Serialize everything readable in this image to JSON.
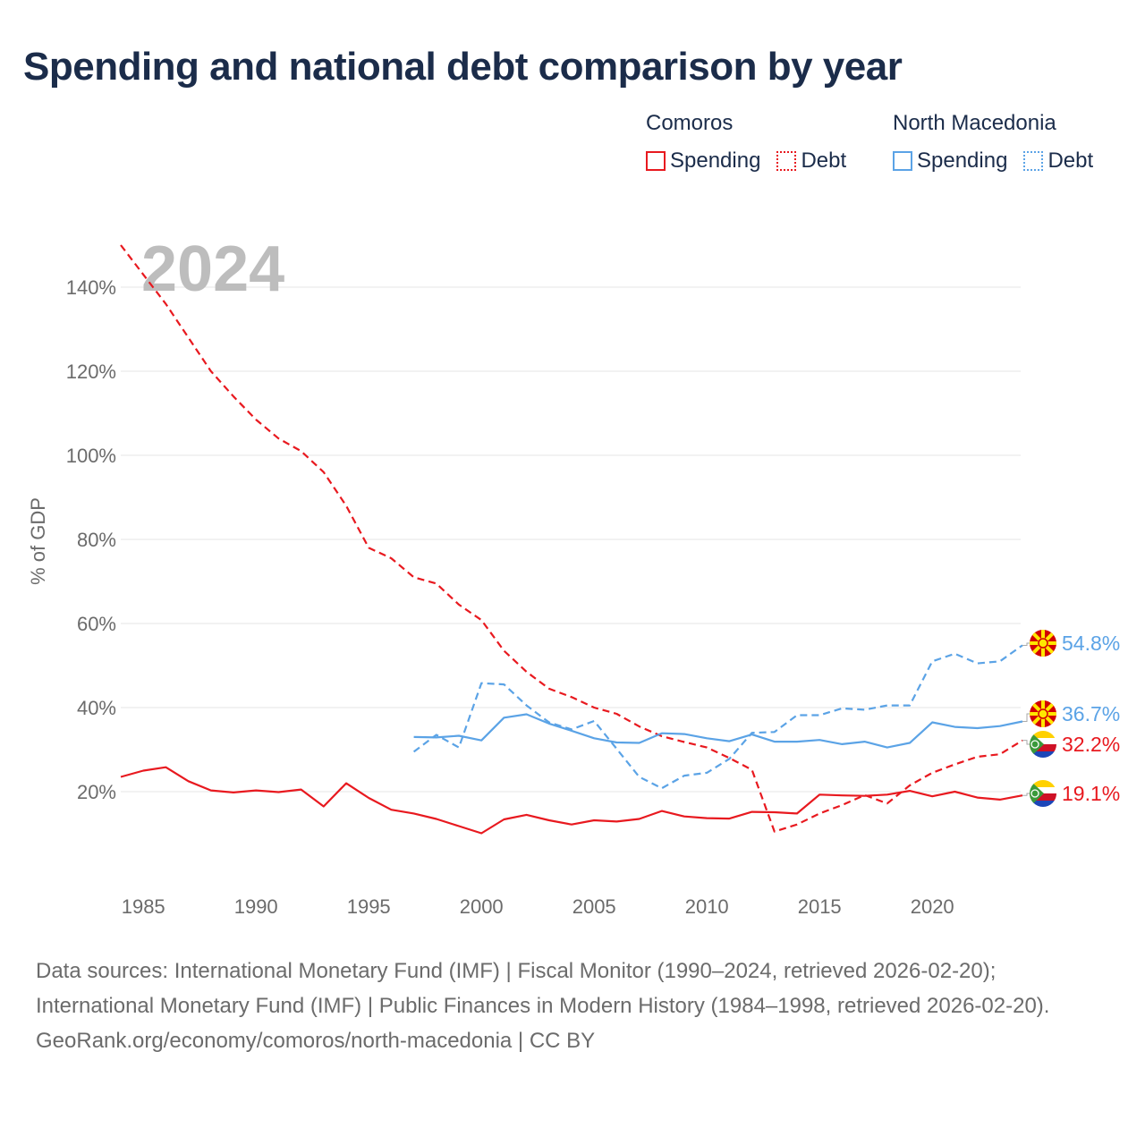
{
  "title": "Spending and national debt comparison by year",
  "legend": {
    "groups": [
      {
        "name": "Comoros",
        "color": "#e8191f",
        "items": [
          {
            "label": "Spending",
            "style": "solid"
          },
          {
            "label": "Debt",
            "style": "dotted"
          }
        ]
      },
      {
        "name": "North Macedonia",
        "color": "#5ba3e6",
        "items": [
          {
            "label": "Spending",
            "style": "solid"
          },
          {
            "label": "Debt",
            "style": "dotted"
          }
        ]
      }
    ]
  },
  "year_label": "2024",
  "sources": {
    "line1": "Data sources: International Monetary Fund (IMF) | Fiscal Monitor (1990–2024, retrieved 2026-02-20); International Monetary Fund (IMF) | Public Finances in Modern History (1984–1998, retrieved 2026-02-20).",
    "line2": "GeoRank.org/economy/comoros/north-macedonia | CC BY"
  },
  "chart_data": {
    "type": "line",
    "ylabel": "% of GDP",
    "xlabel": "",
    "xlim": [
      1984,
      2024
    ],
    "ylim": [
      0,
      150
    ],
    "x_ticks": [
      1985,
      1990,
      1995,
      2000,
      2005,
      2010,
      2015,
      2020
    ],
    "y_ticks": [
      20,
      40,
      60,
      80,
      100,
      120,
      140
    ],
    "y_tick_labels": [
      "20%",
      "40%",
      "60%",
      "80%",
      "100%",
      "120%",
      "140%"
    ],
    "grid": true,
    "series": [
      {
        "name": "Comoros Debt",
        "country": "Comoros",
        "color": "#e8191f",
        "dash": "dashed",
        "end_label": "32.2%",
        "x": [
          1984,
          1985,
          1986,
          1987,
          1988,
          1989,
          1990,
          1991,
          1992,
          1993,
          1994,
          1995,
          1996,
          1997,
          1998,
          1999,
          2000,
          2001,
          2002,
          2003,
          2004,
          2005,
          2006,
          2007,
          2008,
          2009,
          2010,
          2011,
          2012,
          2013,
          2014,
          2015,
          2016,
          2017,
          2018,
          2019,
          2020,
          2021,
          2022,
          2023,
          2024
        ],
        "values": [
          150,
          143,
          136,
          128,
          120,
          114,
          108.5,
          104,
          101,
          96,
          88,
          78,
          75.5,
          71,
          69.5,
          64.5,
          60.8,
          53.5,
          48.5,
          44.5,
          42.5,
          40,
          38.5,
          35.5,
          33.2,
          31.8,
          30.5,
          28,
          25.2,
          10.5,
          12.2,
          14.8,
          16.8,
          19.2,
          17.2,
          21.5,
          24.5,
          26.5,
          28.3,
          28.9,
          32.2
        ]
      },
      {
        "name": "Comoros Spending",
        "country": "Comoros",
        "color": "#e8191f",
        "dash": "solid",
        "end_label": "19.1%",
        "x": [
          1984,
          1985,
          1986,
          1987,
          1988,
          1989,
          1990,
          1991,
          1992,
          1993,
          1994,
          1995,
          1996,
          1997,
          1998,
          1999,
          2000,
          2001,
          2002,
          2003,
          2004,
          2005,
          2006,
          2007,
          2008,
          2009,
          2010,
          2011,
          2012,
          2013,
          2014,
          2015,
          2016,
          2017,
          2018,
          2019,
          2020,
          2021,
          2022,
          2023,
          2024
        ],
        "values": [
          23.5,
          25,
          25.8,
          22.5,
          20.3,
          19.8,
          20.3,
          19.9,
          20.5,
          16.5,
          22,
          18.5,
          15.7,
          14.8,
          13.5,
          11.8,
          10.1,
          13.4,
          14.5,
          13.2,
          12.2,
          13.2,
          12.9,
          13.5,
          15.4,
          14.1,
          13.7,
          13.6,
          15.2,
          15.1,
          14.8,
          19.3,
          19.1,
          19.0,
          19.3,
          20.2,
          18.9,
          20.0,
          18.6,
          18.1,
          19.1
        ]
      },
      {
        "name": "North Macedonia Debt",
        "country": "North Macedonia",
        "color": "#5ba3e6",
        "dash": "dashed",
        "end_label": "54.8%",
        "x": [
          1997,
          1998,
          1999,
          2000,
          2001,
          2002,
          2003,
          2004,
          2005,
          2006,
          2007,
          2008,
          2009,
          2010,
          2011,
          2012,
          2013,
          2014,
          2015,
          2016,
          2017,
          2018,
          2019,
          2020,
          2021,
          2022,
          2023,
          2024
        ],
        "values": [
          29.5,
          33.5,
          30.5,
          45.8,
          45.5,
          40.5,
          36.5,
          34.8,
          36.8,
          30.2,
          23.5,
          20.8,
          23.8,
          24.5,
          27.8,
          34,
          34.2,
          38.2,
          38.2,
          39.8,
          39.5,
          40.5,
          40.5,
          51,
          52.8,
          50.5,
          51,
          54.8
        ]
      },
      {
        "name": "North Macedonia Spending",
        "country": "North Macedonia",
        "color": "#5ba3e6",
        "dash": "solid",
        "end_label": "36.7%",
        "x": [
          1997,
          1998,
          1999,
          2000,
          2001,
          2002,
          2003,
          2004,
          2005,
          2006,
          2007,
          2008,
          2009,
          2010,
          2011,
          2012,
          2013,
          2014,
          2015,
          2016,
          2017,
          2018,
          2019,
          2020,
          2021,
          2022,
          2023,
          2024
        ],
        "values": [
          33,
          32.9,
          33.3,
          32.2,
          37.6,
          38.4,
          36.2,
          34.5,
          32.7,
          31.7,
          31.6,
          33.9,
          33.7,
          32.7,
          32.0,
          33.6,
          31.9,
          31.9,
          32.3,
          31.3,
          31.9,
          30.5,
          31.6,
          36.5,
          35.4,
          35.1,
          35.6,
          36.7
        ]
      }
    ]
  }
}
